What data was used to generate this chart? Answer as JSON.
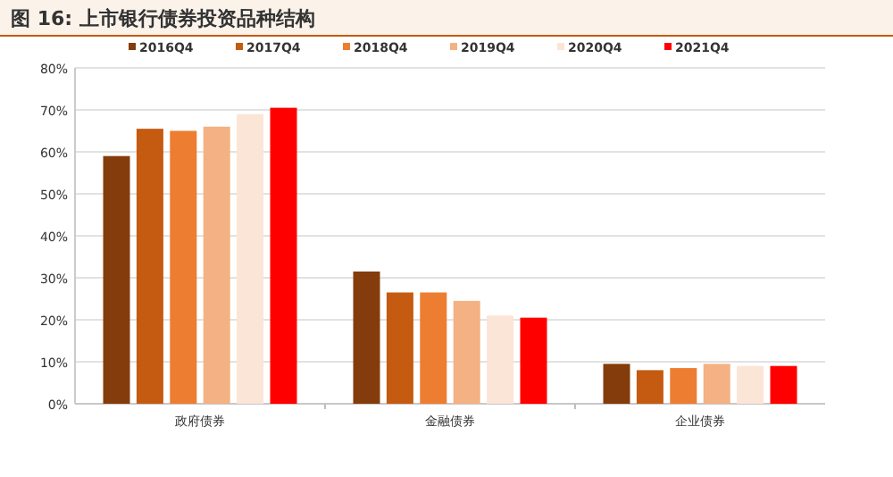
{
  "chart_data": {
    "type": "bar",
    "title": "图 16: 上市银行债券投资品种结构",
    "categories": [
      "政府债券",
      "金融债券",
      "企业债券"
    ],
    "series": [
      {
        "name": "2016Q4",
        "color": "#843c0c",
        "values": [
          59,
          31.5,
          9.5
        ]
      },
      {
        "name": "2017Q4",
        "color": "#c55a11",
        "values": [
          65.5,
          26.5,
          8
        ]
      },
      {
        "name": "2018Q4",
        "color": "#ed7d31",
        "values": [
          65,
          26.5,
          8.5
        ]
      },
      {
        "name": "2019Q4",
        "color": "#f4b183",
        "values": [
          66,
          24.5,
          9.5
        ]
      },
      {
        "name": "2020Q4",
        "color": "#fbe5d6",
        "values": [
          69,
          21,
          9
        ]
      },
      {
        "name": "2021Q4",
        "color": "#ff0000",
        "values": [
          70.5,
          20.5,
          9
        ]
      }
    ],
    "ylim": [
      0,
      80
    ],
    "yticks": [
      {
        "value": 0,
        "label": "0%"
      },
      {
        "value": 10,
        "label": "10%"
      },
      {
        "value": 20,
        "label": "20%"
      },
      {
        "value": 30,
        "label": "30%"
      },
      {
        "value": 40,
        "label": "40%"
      },
      {
        "value": 50,
        "label": "50%"
      },
      {
        "value": 60,
        "label": "60%"
      },
      {
        "value": 70,
        "label": "70%"
      },
      {
        "value": 80,
        "label": "80%"
      }
    ],
    "grid": "y",
    "legend": "top"
  }
}
